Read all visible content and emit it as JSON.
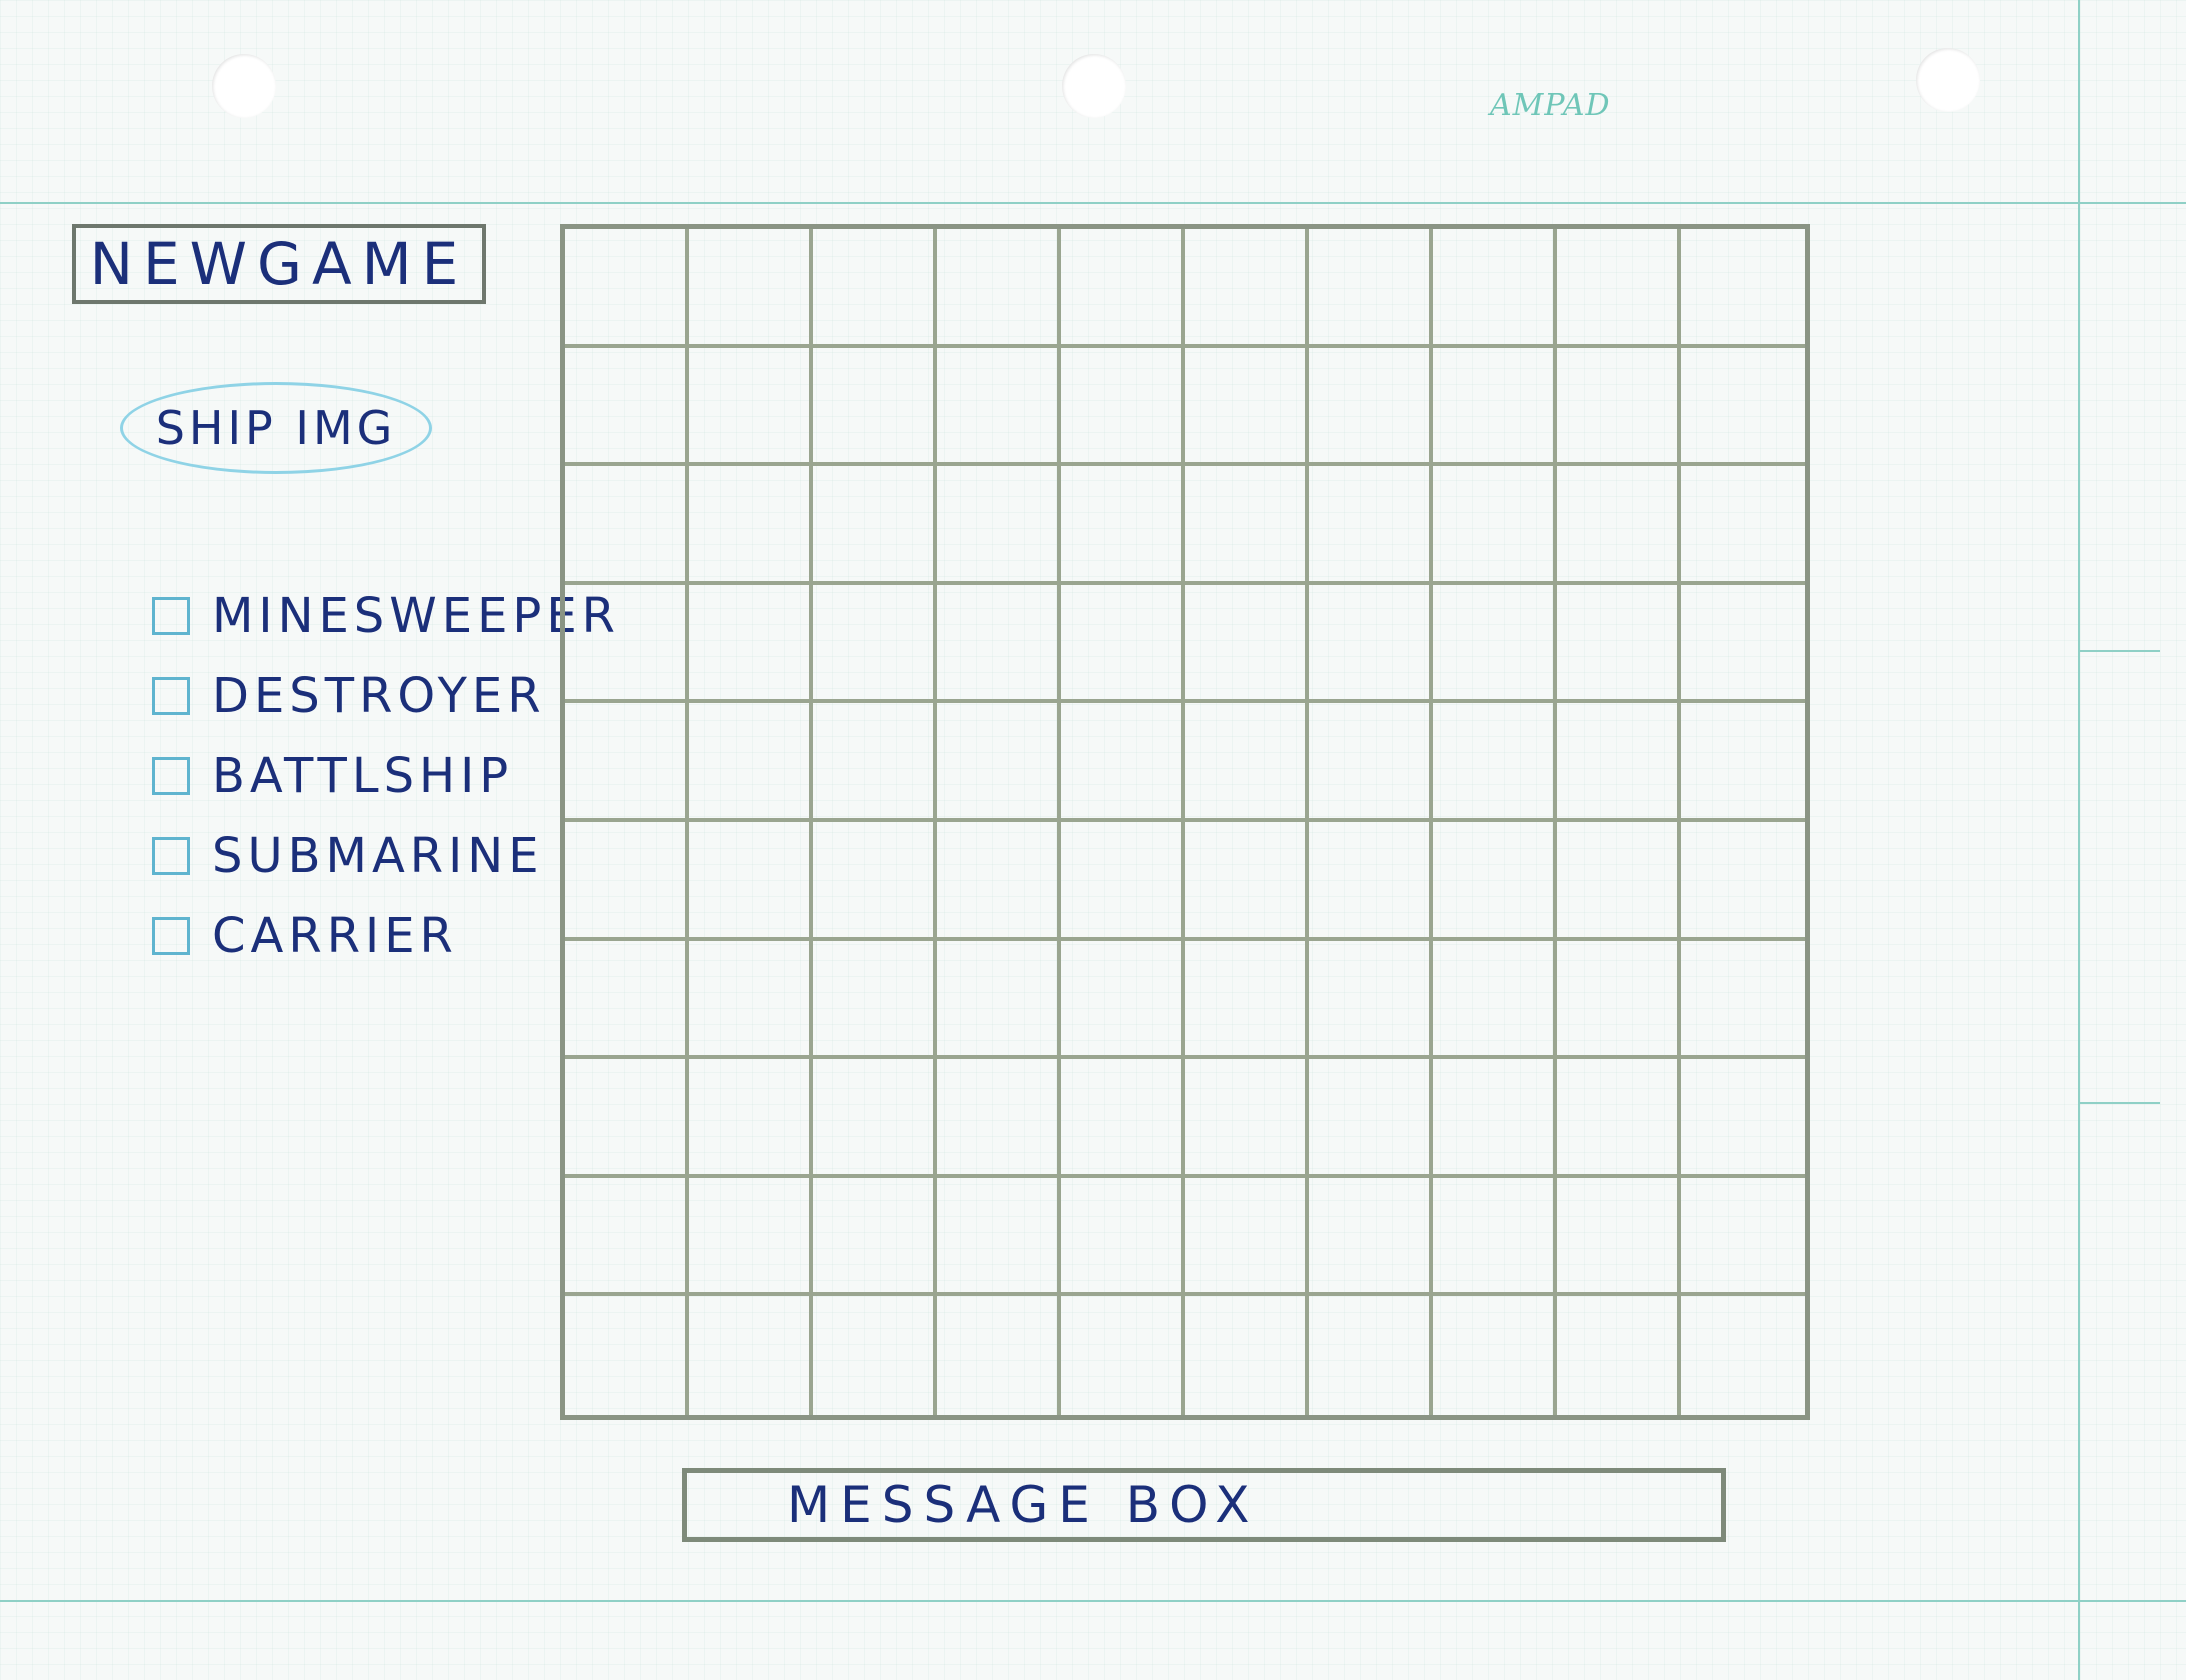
{
  "paper": {
    "brand": "AMPAD"
  },
  "controls": {
    "new_game_label": "NEWGAME",
    "ship_image_label": "SHIP IMG"
  },
  "ships": [
    {
      "label": "MINESWEEPER",
      "checked": false
    },
    {
      "label": "DESTROYER",
      "checked": false
    },
    {
      "label": "BATTLSHIP",
      "checked": false
    },
    {
      "label": "SUBMARINE",
      "checked": false
    },
    {
      "label": "CARRIER",
      "checked": false
    }
  ],
  "board": {
    "rows": 10,
    "cols": 10
  },
  "message_box": {
    "label": "MESSAGE BOX"
  },
  "colors": {
    "ink": "#1b2f7a",
    "pencil": "#8a9484",
    "paper_rule": "#8fd0c6",
    "checkbox": "#5fb4cf"
  }
}
